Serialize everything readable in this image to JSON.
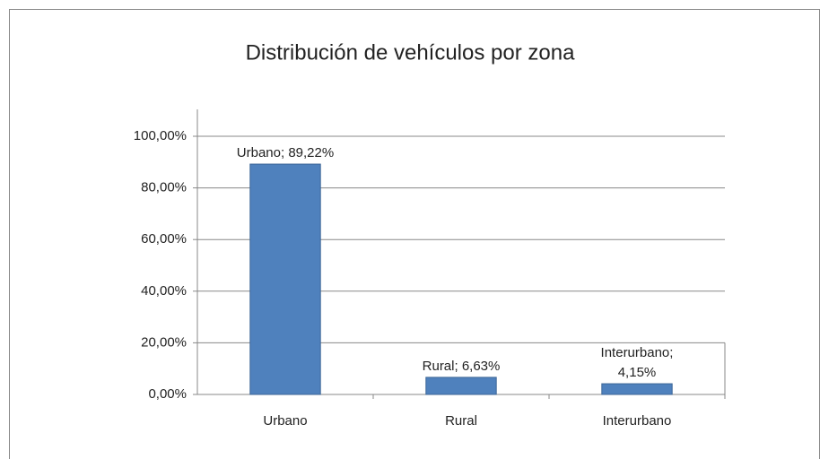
{
  "chart_data": {
    "type": "bar",
    "title": "Distribución de vehículos por zona",
    "categories": [
      "Urbano",
      "Rural",
      "Interurbano"
    ],
    "values": [
      89.22,
      6.63,
      4.15
    ],
    "value_labels": [
      "Urbano; 89,22%",
      "Rural; 6,63%",
      "Interurbano; 4,15%"
    ],
    "color": "#4f81bd",
    "ylim": [
      0,
      100
    ],
    "yticks": [
      {
        "value": 0,
        "label": "0,00%"
      },
      {
        "value": 20,
        "label": "20,00%"
      },
      {
        "value": 40,
        "label": "40,00%"
      },
      {
        "value": 60,
        "label": "60,00%"
      },
      {
        "value": 80,
        "label": "80,00%"
      },
      {
        "value": 100,
        "label": "100,00%"
      }
    ],
    "grid": true
  }
}
